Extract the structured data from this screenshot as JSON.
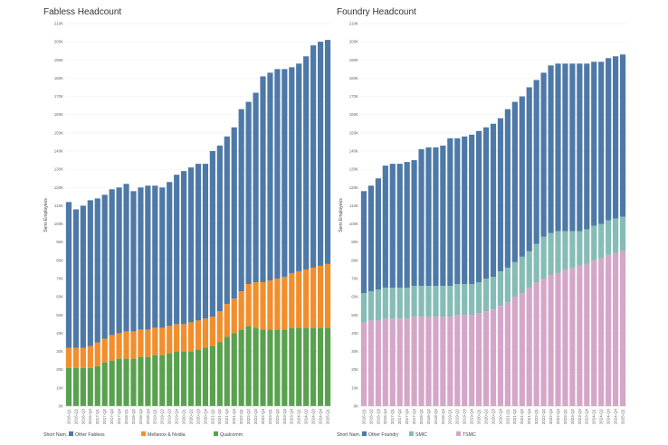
{
  "chart_data": [
    {
      "type": "bar",
      "stacked": true,
      "title": "Fabless Headcount",
      "ylabel": "Semi Employees",
      "ylim": [
        0,
        210000
      ],
      "yticks": [
        "0K",
        "10K",
        "20K",
        "30K",
        "40K",
        "50K",
        "60K",
        "70K",
        "80K",
        "90K",
        "100K",
        "110K",
        "120K",
        "130K",
        "140K",
        "150K",
        "160K",
        "170K",
        "180K",
        "190K",
        "200K",
        "210K"
      ],
      "grid": true,
      "legend_position": "bottom-left",
      "legend_title": "Short Nam..",
      "categories": [
        "2016-Q1",
        "2016-Q2",
        "2016-Q3",
        "2016-Q4",
        "2017-Q1",
        "2017-Q2",
        "2017-Q3",
        "2017-Q4",
        "2018-Q1",
        "2018-Q2",
        "2018-Q3",
        "2018-Q4",
        "2019-Q1",
        "2019-Q2",
        "2019-Q3",
        "2019-Q4",
        "2020-Q1",
        "2020-Q2",
        "2020-Q3",
        "2020-Q4",
        "2021-Q1",
        "2021-Q2",
        "2021-Q3",
        "2021-Q4",
        "2022-Q1",
        "2022-Q2",
        "2022-Q3",
        "2022-Q4",
        "2023-Q1",
        "2023-Q2",
        "2023-Q3",
        "2023-Q4",
        "2024-Q1",
        "2024-Q2",
        "2024-Q3",
        "2024-Q4",
        "2025-Q1"
      ],
      "series": [
        {
          "name": "Qualcomm",
          "color": "#59a14f",
          "values": [
            21000,
            21000,
            21000,
            21000,
            22000,
            24000,
            25000,
            26000,
            26000,
            26000,
            27000,
            27000,
            28000,
            28000,
            29000,
            30000,
            30000,
            30000,
            31000,
            32000,
            33000,
            35000,
            38000,
            40000,
            42000,
            44000,
            43000,
            42000,
            42000,
            42000,
            42000,
            43000,
            43000,
            43000,
            43000,
            43000,
            43000
          ]
        },
        {
          "name": "Mellanox & Nvidia",
          "color": "#f28e2b",
          "values": [
            11000,
            11000,
            11000,
            12000,
            13000,
            13000,
            14000,
            14000,
            15000,
            15000,
            15000,
            15000,
            15000,
            15000,
            15000,
            15000,
            15000,
            16000,
            16000,
            16000,
            16000,
            17000,
            18000,
            19000,
            21000,
            23000,
            25000,
            26000,
            27000,
            28000,
            29000,
            30000,
            31000,
            32000,
            33000,
            34000,
            35000
          ]
        },
        {
          "name": "Other Fabless",
          "color": "#4e79a7",
          "values": [
            80000,
            76000,
            78000,
            80000,
            79000,
            79000,
            80000,
            80000,
            81000,
            77000,
            78000,
            79000,
            78000,
            77000,
            79000,
            82000,
            84000,
            85000,
            86000,
            85000,
            91000,
            91000,
            92000,
            94000,
            100000,
            100000,
            104000,
            113000,
            114000,
            115000,
            114000,
            113000,
            114000,
            117000,
            122000,
            123000,
            123000
          ]
        }
      ]
    },
    {
      "type": "bar",
      "stacked": true,
      "title": "Foundry Headcount",
      "ylabel": "Semi Employees",
      "ylim": [
        0,
        210000
      ],
      "yticks": [
        "0K",
        "10K",
        "20K",
        "30K",
        "40K",
        "50K",
        "60K",
        "70K",
        "80K",
        "90K",
        "100K",
        "110K",
        "120K",
        "130K",
        "140K",
        "150K",
        "160K",
        "170K",
        "180K",
        "190K",
        "200K",
        "210K"
      ],
      "grid": true,
      "legend_position": "bottom-left",
      "legend_title": "Short Nam..",
      "categories": [
        "2016-Q1",
        "2016-Q2",
        "2016-Q3",
        "2016-Q4",
        "2017-Q1",
        "2017-Q2",
        "2017-Q3",
        "2017-Q4",
        "2018-Q1",
        "2018-Q2",
        "2018-Q3",
        "2018-Q4",
        "2019-Q1",
        "2019-Q2",
        "2019-Q3",
        "2019-Q4",
        "2020-Q1",
        "2020-Q2",
        "2020-Q3",
        "2020-Q4",
        "2021-Q1",
        "2021-Q2",
        "2021-Q3",
        "2021-Q4",
        "2022-Q1",
        "2022-Q2",
        "2022-Q3",
        "2022-Q4",
        "2023-Q1",
        "2023-Q2",
        "2023-Q3",
        "2023-Q4",
        "2024-Q1",
        "2024-Q2",
        "2024-Q3",
        "2024-Q4",
        "2025-Q1"
      ],
      "series": [
        {
          "name": "TSMC",
          "color": "#d4a6c8",
          "values": [
            46000,
            47000,
            47000,
            48000,
            48000,
            48000,
            48000,
            49000,
            49000,
            49000,
            49000,
            49000,
            49000,
            50000,
            50000,
            50000,
            51000,
            52000,
            53000,
            55000,
            57000,
            60000,
            62000,
            65000,
            68000,
            70000,
            72000,
            73000,
            75000,
            76000,
            77000,
            78000,
            80000,
            81000,
            83000,
            84000,
            85000
          ]
        },
        {
          "name": "SMIC",
          "color": "#86bcb6",
          "values": [
            16000,
            16000,
            17000,
            17000,
            17000,
            17000,
            17000,
            17000,
            17000,
            17000,
            17000,
            17000,
            17000,
            17000,
            17000,
            17000,
            17000,
            18000,
            18000,
            19000,
            19000,
            19000,
            20000,
            20000,
            21000,
            23000,
            23000,
            23000,
            21000,
            20000,
            19000,
            19000,
            19000,
            19000,
            19000,
            19000,
            19000
          ]
        },
        {
          "name": "Other Foundry",
          "color": "#4e79a7",
          "values": [
            56000,
            58000,
            61000,
            67000,
            68000,
            68000,
            69000,
            69000,
            75000,
            76000,
            76000,
            77000,
            81000,
            80000,
            81000,
            82000,
            83000,
            83000,
            84000,
            84000,
            87000,
            88000,
            88000,
            90000,
            90000,
            90000,
            92000,
            92000,
            92000,
            92000,
            92000,
            91000,
            90000,
            89000,
            89000,
            89000,
            89000
          ]
        }
      ]
    }
  ]
}
